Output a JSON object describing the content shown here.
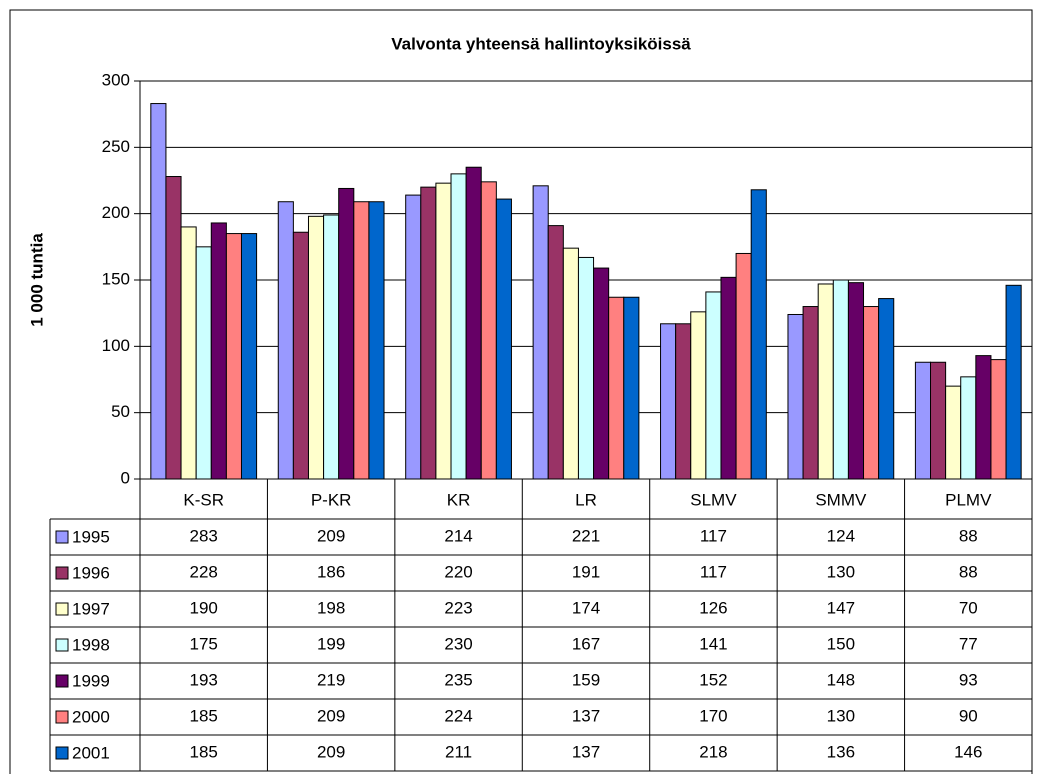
{
  "chart_data": {
    "type": "bar",
    "title": "Valvonta yhteensä hallintoyksiköissä",
    "y_label": "1 000 tuntia",
    "categories": [
      "K-SR",
      "P-KR",
      "KR",
      "LR",
      "SLMV",
      "SMMV",
      "PLMV"
    ],
    "series": [
      {
        "name": "1995",
        "color": "#9999ff",
        "values": [
          283,
          209,
          214,
          221,
          117,
          124,
          88
        ]
      },
      {
        "name": "1996",
        "color": "#993366",
        "values": [
          228,
          186,
          220,
          191,
          117,
          130,
          88
        ]
      },
      {
        "name": "1997",
        "color": "#ffffcc",
        "values": [
          190,
          198,
          223,
          174,
          126,
          147,
          70
        ]
      },
      {
        "name": "1998",
        "color": "#ccffff",
        "values": [
          175,
          199,
          230,
          167,
          141,
          150,
          77
        ]
      },
      {
        "name": "1999",
        "color": "#660066",
        "values": [
          193,
          219,
          235,
          159,
          152,
          148,
          93
        ]
      },
      {
        "name": "2000",
        "color": "#ff8080",
        "values": [
          185,
          209,
          224,
          137,
          170,
          130,
          90
        ]
      },
      {
        "name": "2001",
        "color": "#0066cc",
        "values": [
          185,
          209,
          211,
          137,
          218,
          136,
          146
        ]
      }
    ],
    "ylim": [
      0,
      300
    ],
    "yticks": [
      0,
      50,
      100,
      150,
      200,
      250,
      300
    ],
    "grid": true
  }
}
